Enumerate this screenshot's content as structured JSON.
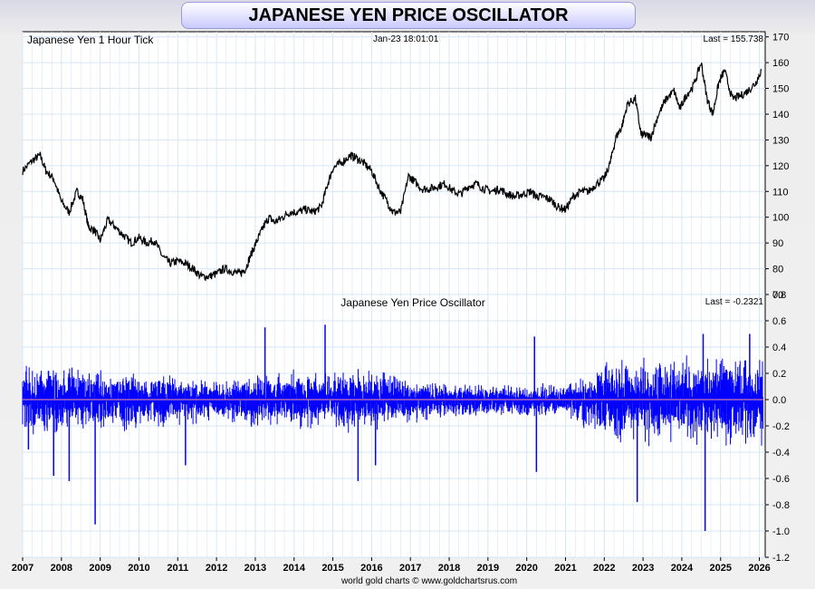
{
  "page": {
    "title": "JAPANESE YEN PRICE OSCILLATOR",
    "credit": "world gold charts © www.goldchartsrus.com"
  },
  "colors": {
    "price_line": "#000000",
    "osc_line": "#0000ff",
    "zero_line": "#ff9999",
    "grid": "#d6e6f5",
    "title_bg": "#c9c9ff"
  },
  "chart_data": [
    {
      "type": "line",
      "title": "Japanese Yen 1 Hour Tick",
      "timestamp": "Jan-23  18:01:01",
      "last_label": "Last = 155.738",
      "ylim": [
        70,
        172
      ],
      "yticks": [
        70,
        80,
        90,
        100,
        110,
        120,
        130,
        140,
        150,
        160,
        170
      ],
      "xlim": [
        2007,
        2026.15
      ],
      "series": [
        {
          "name": "Japanese Yen",
          "x": [
            2007.0,
            2007.25,
            2007.45,
            2007.6,
            2007.8,
            2008.0,
            2008.2,
            2008.4,
            2008.55,
            2008.7,
            2008.85,
            2009.0,
            2009.2,
            2009.4,
            2009.6,
            2009.8,
            2010.0,
            2010.2,
            2010.4,
            2010.6,
            2010.8,
            2011.0,
            2011.2,
            2011.4,
            2011.6,
            2011.8,
            2012.0,
            2012.2,
            2012.4,
            2012.6,
            2012.75,
            2012.9,
            2013.05,
            2013.2,
            2013.35,
            2013.5,
            2013.7,
            2013.9,
            2014.1,
            2014.3,
            2014.5,
            2014.7,
            2014.85,
            2015.0,
            2015.2,
            2015.45,
            2015.6,
            2015.8,
            2016.0,
            2016.2,
            2016.4,
            2016.55,
            2016.75,
            2016.95,
            2017.1,
            2017.3,
            2017.5,
            2017.7,
            2017.9,
            2018.1,
            2018.3,
            2018.5,
            2018.7,
            2018.9,
            2019.1,
            2019.3,
            2019.5,
            2019.7,
            2019.9,
            2020.1,
            2020.25,
            2020.4,
            2020.6,
            2020.8,
            2021.0,
            2021.2,
            2021.4,
            2021.6,
            2021.8,
            2022.0,
            2022.15,
            2022.3,
            2022.45,
            2022.6,
            2022.8,
            2022.95,
            2023.05,
            2023.2,
            2023.4,
            2023.6,
            2023.8,
            2023.95,
            2024.1,
            2024.3,
            2024.5,
            2024.65,
            2024.8,
            2024.95,
            2025.1,
            2025.3,
            2025.5,
            2025.7,
            2025.9,
            2026.05
          ],
          "values": [
            118,
            122,
            124,
            118,
            115,
            106,
            102,
            110,
            107,
            96,
            95,
            91,
            99,
            96,
            93,
            90,
            92,
            90,
            91,
            85,
            82,
            83,
            82,
            80,
            77,
            77,
            78,
            80,
            79,
            78,
            80,
            86,
            91,
            96,
            100,
            98,
            100,
            102,
            102,
            103,
            102,
            104,
            112,
            119,
            121,
            124,
            123,
            121,
            118,
            111,
            106,
            102,
            102,
            116,
            114,
            111,
            111,
            112,
            113,
            110,
            109,
            112,
            113,
            111,
            110,
            111,
            109,
            108,
            109,
            110,
            108,
            108,
            107,
            104,
            103,
            108,
            110,
            110,
            113,
            115,
            121,
            131,
            135,
            144,
            146,
            132,
            132,
            131,
            140,
            146,
            149,
            142,
            147,
            151,
            160,
            146,
            140,
            152,
            157,
            146,
            147,
            149,
            152,
            157
          ]
        }
      ]
    },
    {
      "type": "line",
      "title": "Japanese Yen Price Oscillator",
      "last_label": "Last = -0.2321",
      "ylim": [
        -1.2,
        0.8
      ],
      "yticks": [
        -1.2,
        -1.0,
        -0.8,
        -0.6,
        -0.4,
        -0.2,
        0.0,
        0.2,
        0.4,
        0.6,
        0.8
      ],
      "xticks": [
        "2007",
        "2008",
        "2009",
        "2010",
        "2011",
        "2012",
        "2013",
        "2014",
        "2015",
        "2016",
        "2017",
        "2018",
        "2019",
        "2020",
        "2021",
        "2022",
        "2023",
        "2024",
        "2025",
        "2026"
      ],
      "spikes": [
        {
          "x": 2008.87,
          "v": -0.95
        },
        {
          "x": 2008.2,
          "v": -0.62
        },
        {
          "x": 2007.8,
          "v": -0.58
        },
        {
          "x": 2007.15,
          "v": -0.38
        },
        {
          "x": 2011.2,
          "v": -0.5
        },
        {
          "x": 2013.25,
          "v": 0.55
        },
        {
          "x": 2014.8,
          "v": 0.57
        },
        {
          "x": 2015.65,
          "v": -0.62
        },
        {
          "x": 2016.1,
          "v": -0.5
        },
        {
          "x": 2020.2,
          "v": 0.48
        },
        {
          "x": 2020.25,
          "v": -0.55
        },
        {
          "x": 2022.85,
          "v": -0.78
        },
        {
          "x": 2024.6,
          "v": -1.0
        },
        {
          "x": 2024.55,
          "v": 0.5
        },
        {
          "x": 2025.75,
          "v": 0.5
        }
      ],
      "amplitude": [
        {
          "x": 2007,
          "a": 0.25
        },
        {
          "x": 2009.5,
          "a": 0.22
        },
        {
          "x": 2012,
          "a": 0.15
        },
        {
          "x": 2014,
          "a": 0.22
        },
        {
          "x": 2016,
          "a": 0.22
        },
        {
          "x": 2018,
          "a": 0.12
        },
        {
          "x": 2021,
          "a": 0.12
        },
        {
          "x": 2022,
          "a": 0.3
        },
        {
          "x": 2026,
          "a": 0.32
        }
      ]
    }
  ]
}
